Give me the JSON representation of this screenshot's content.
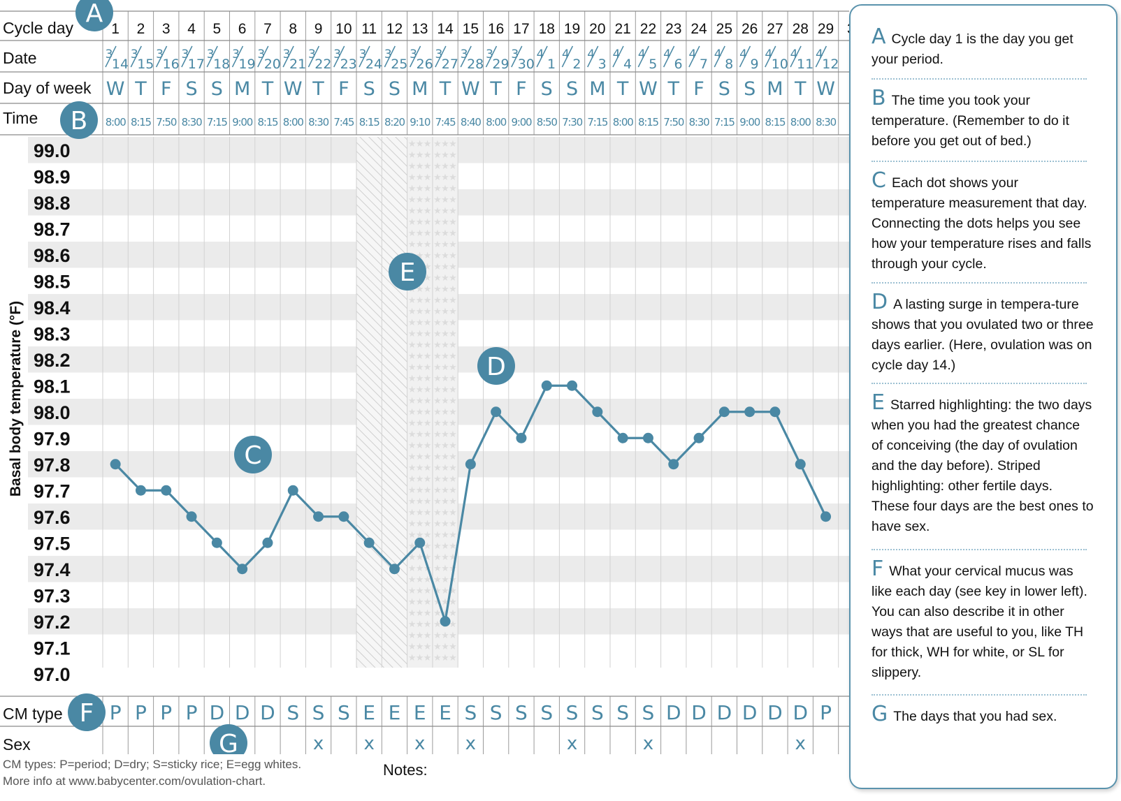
{
  "chart_data": {
    "type": "line",
    "ylabel": "Basal body temperature (°F)",
    "ylim": [
      97.0,
      99.0
    ],
    "yticks": [
      "99.0",
      "98.9",
      "98.8",
      "98.7",
      "98.6",
      "98.5",
      "98.4",
      "98.3",
      "98.2",
      "98.1",
      "98.0",
      "97.9",
      "97.8",
      "97.7",
      "97.6",
      "97.5",
      "97.4",
      "97.3",
      "97.2",
      "97.1",
      "97.0"
    ],
    "row_labels": {
      "cycle_day": "Cycle day",
      "date": "Date",
      "day_of_week": "Day of week",
      "time": "Time",
      "cm_type": "CM type",
      "sex": "Sex"
    },
    "cycle_days": [
      "1",
      "2",
      "3",
      "4",
      "5",
      "6",
      "7",
      "8",
      "9",
      "10",
      "11",
      "12",
      "13",
      "14",
      "15",
      "16",
      "17",
      "18",
      "19",
      "20",
      "21",
      "22",
      "23",
      "24",
      "25",
      "26",
      "27",
      "28",
      "29",
      "3"
    ],
    "dates": [
      [
        "3",
        "14"
      ],
      [
        "3",
        "15"
      ],
      [
        "3",
        "16"
      ],
      [
        "3",
        "17"
      ],
      [
        "3",
        "18"
      ],
      [
        "3",
        "19"
      ],
      [
        "3",
        "20"
      ],
      [
        "3",
        "21"
      ],
      [
        "3",
        "22"
      ],
      [
        "3",
        "23"
      ],
      [
        "3",
        "24"
      ],
      [
        "3",
        "25"
      ],
      [
        "3",
        "26"
      ],
      [
        "3",
        "27"
      ],
      [
        "3",
        "28"
      ],
      [
        "3",
        "29"
      ],
      [
        "3",
        "30"
      ],
      [
        "4",
        "1"
      ],
      [
        "4",
        "2"
      ],
      [
        "4",
        "3"
      ],
      [
        "4",
        "4"
      ],
      [
        "4",
        "5"
      ],
      [
        "4",
        "6"
      ],
      [
        "4",
        "7"
      ],
      [
        "4",
        "8"
      ],
      [
        "4",
        "9"
      ],
      [
        "4",
        "10"
      ],
      [
        "4",
        "11"
      ],
      [
        "4",
        "12"
      ],
      [
        "",
        ""
      ]
    ],
    "days_of_week": [
      "W",
      "T",
      "F",
      "S",
      "S",
      "M",
      "T",
      "W",
      "T",
      "F",
      "S",
      "S",
      "M",
      "T",
      "W",
      "T",
      "F",
      "S",
      "S",
      "M",
      "T",
      "W",
      "T",
      "F",
      "S",
      "S",
      "M",
      "T",
      "W",
      ""
    ],
    "times": [
      "8:00",
      "8:15",
      "7:50",
      "8:30",
      "7:15",
      "9:00",
      "8:15",
      "8:00",
      "8:30",
      "7:45",
      "8:15",
      "8:20",
      "9:10",
      "7:45",
      "8:40",
      "8:00",
      "9:00",
      "8:50",
      "7:30",
      "7:15",
      "8:00",
      "8:15",
      "7:50",
      "8:30",
      "7:15",
      "9:00",
      "8:15",
      "8:00",
      "8:30",
      ""
    ],
    "series": [
      {
        "x": [
          1,
          2,
          3,
          4,
          5,
          6,
          7,
          8,
          9,
          10,
          11,
          12,
          13,
          14,
          15,
          16,
          17,
          18,
          19,
          20,
          21,
          22,
          23,
          24,
          25,
          26,
          27,
          28,
          29
        ],
        "values": [
          97.8,
          97.7,
          97.7,
          97.6,
          97.5,
          97.4,
          97.5,
          97.7,
          97.6,
          97.6,
          97.5,
          97.4,
          97.5,
          97.2,
          97.8,
          98.0,
          97.9,
          98.1,
          98.1,
          98.0,
          97.9,
          97.9,
          97.8,
          97.9,
          98.0,
          98.0,
          98.0,
          97.8,
          97.6
        ]
      }
    ],
    "cm_types": [
      "P",
      "P",
      "P",
      "P",
      "D",
      "D",
      "D",
      "S",
      "S",
      "S",
      "E",
      "E",
      "E",
      "E",
      "S",
      "S",
      "S",
      "S",
      "S",
      "S",
      "S",
      "S",
      "D",
      "D",
      "D",
      "D",
      "D",
      "D",
      "P",
      ""
    ],
    "sex": [
      "",
      "",
      "",
      "",
      "",
      "",
      "",
      "",
      "x",
      "",
      "x",
      "",
      "x",
      "",
      "x",
      "",
      "",
      "",
      "x",
      "",
      "",
      "x",
      "",
      "",
      "",
      "",
      "",
      "x",
      "",
      ""
    ],
    "striped_days": [
      11,
      12
    ],
    "starred_days": [
      13,
      14
    ],
    "callouts": [
      {
        "letter": "A",
        "anchor": "cycle-day-header"
      },
      {
        "letter": "B",
        "anchor": "time-row"
      },
      {
        "letter": "C",
        "anchor": "plot-dots"
      },
      {
        "letter": "D",
        "anchor": "temperature-rise"
      },
      {
        "letter": "E",
        "anchor": "fertile-window"
      },
      {
        "letter": "F",
        "anchor": "cm-type-row"
      },
      {
        "letter": "G",
        "anchor": "sex-row"
      }
    ],
    "colors": {
      "accent": "#4a88a4",
      "band": "#ebebeb",
      "star_fill": "#dcdcdc",
      "stripe": "#cfcfcf"
    }
  },
  "footer": {
    "line1": "CM types:  P=period;  D=dry;  S=sticky rice;  E=egg whites.",
    "line2": "More info at www.babycenter.com/ovulation-chart.",
    "notes": "Notes:"
  },
  "legend": [
    {
      "letter": "A",
      "text": "Cycle day 1 is the day you get your period."
    },
    {
      "letter": "B",
      "text": "The time you took your temperature. (Remember to do it before you get out of bed.)"
    },
    {
      "letter": "C",
      "text": "Each dot shows your temperature measurement that day. Connecting the dots helps you see how your temperature rises and falls through your cycle."
    },
    {
      "letter": "D",
      "text": "A lasting surge in tempera-ture shows that you ovulated two or three days earlier. (Here, ovulation was on cycle day 14.)"
    },
    {
      "letter": "E",
      "text": "Starred highlighting: the two days when you had the greatest chance of conceiving (the day of ovulation and the day before). Striped highlighting: other fertile days. These four days are the best ones to have sex."
    },
    {
      "letter": "F",
      "text": "What your cervical mucus was like each day (see key in lower left). You can also describe it in other ways that are useful to you, like TH for thick, WH for white, or SL for slippery."
    },
    {
      "letter": "G",
      "text": "The days that you had sex."
    }
  ]
}
